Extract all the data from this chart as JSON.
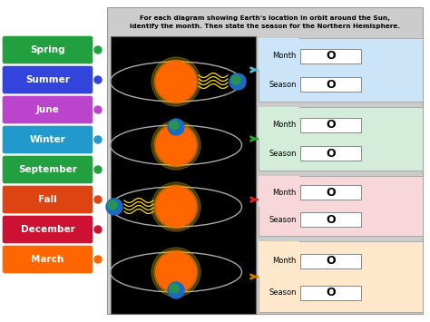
{
  "title_line1": "For each diagram showing Earth's location in orbit around the Sun,",
  "title_line2": "identify the month. Then state the season for the Northern Hemisphere.",
  "labels": [
    "Spring",
    "Summer",
    "June",
    "Winter",
    "September",
    "Fall",
    "December",
    "March"
  ],
  "label_colors": [
    "#22a040",
    "#3344dd",
    "#bb44cc",
    "#2299cc",
    "#22a040",
    "#dd4411",
    "#cc1133",
    "#ff6600"
  ],
  "connector_colors": [
    "#22a040",
    "#3344dd",
    "#bb44cc",
    "#2299cc",
    "#22a040",
    "#dd4411",
    "#cc1133",
    "#ff6600"
  ],
  "panel_bg": "#cccccc",
  "diagram_bg": "#000000",
  "section_bgs": [
    "#cce4f7",
    "#d4edda",
    "#f8d7da",
    "#fde8cc"
  ],
  "arrow_colors": [
    "#55bbdd",
    "#22aa22",
    "#dd2222",
    "#cc7700"
  ],
  "answer_placeholder": "O"
}
